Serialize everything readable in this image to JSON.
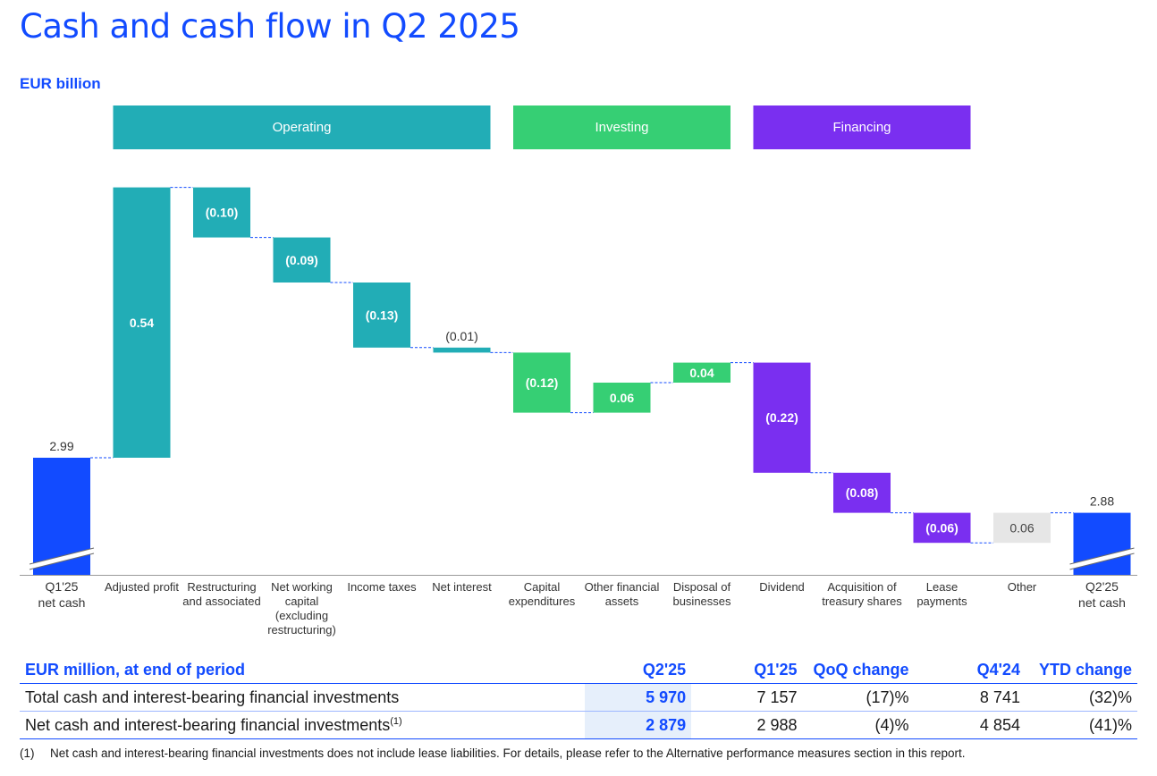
{
  "header": {
    "title": "Cash and cash flow in Q2 2025",
    "unit": "EUR billion"
  },
  "chart_data": {
    "type": "bar",
    "groups": [
      {
        "name": "Operating",
        "color": "#22adb6"
      },
      {
        "name": "Investing",
        "color": "#36cf74"
      },
      {
        "name": "Financing",
        "color": "#7a2ff0"
      }
    ],
    "categories": [
      [
        "Q1'25",
        "net cash"
      ],
      [
        "Adjusted profit"
      ],
      [
        "Restructuring",
        "and associated"
      ],
      [
        "Net working",
        "capital",
        "(excluding",
        "restructuring)"
      ],
      [
        "Income taxes"
      ],
      [
        "Net interest"
      ],
      [
        "Capital",
        "expenditures"
      ],
      [
        "Other financial",
        "assets"
      ],
      [
        "Disposal of",
        "businesses"
      ],
      [
        "Dividend"
      ],
      [
        "Acquisition of",
        "treasury shares"
      ],
      [
        "Lease",
        "payments"
      ],
      [
        "Other"
      ],
      [
        "Q2'25",
        "net cash"
      ]
    ],
    "values": [
      2.99,
      0.54,
      -0.1,
      -0.09,
      -0.13,
      -0.01,
      -0.12,
      0.06,
      0.04,
      -0.22,
      -0.08,
      -0.06,
      0.06,
      2.88
    ],
    "labels": [
      "2.99",
      "0.54",
      "(0.10)",
      "(0.09)",
      "(0.13)",
      "(0.01)",
      "(0.12)",
      "0.06",
      "0.04",
      "(0.22)",
      "(0.08)",
      "(0.06)",
      "0.06",
      "2.88"
    ],
    "bar_kind": [
      "total",
      "Operating",
      "Operating",
      "Operating",
      "Operating",
      "Operating",
      "Investing",
      "Investing",
      "Investing",
      "Financing",
      "Financing",
      "Financing",
      "other",
      "total"
    ],
    "colors": {
      "total": "#124bff",
      "other": "#e6e6e6",
      "connector": "#124bff"
    },
    "axis_break": true
  },
  "table": {
    "headers": [
      "EUR million, at end of period",
      "Q2'25",
      "Q1'25",
      "QoQ change",
      "Q4'24",
      "YTD change"
    ],
    "rows": [
      {
        "label": "Total cash and interest-bearing financial investments",
        "sup": "",
        "values": [
          "5 970",
          "7 157",
          "(17)%",
          "8 741",
          "(32)%"
        ]
      },
      {
        "label": "Net cash and interest-bearing financial investments",
        "sup": "(1)",
        "values": [
          "2 879",
          "2 988",
          "(4)%",
          "4 854",
          "(41)%"
        ]
      }
    ]
  },
  "footnote": {
    "marker": "(1)",
    "text": "Net cash and interest-bearing financial investments does not include lease liabilities. For details, please refer to the Alternative performance measures section in this report."
  }
}
